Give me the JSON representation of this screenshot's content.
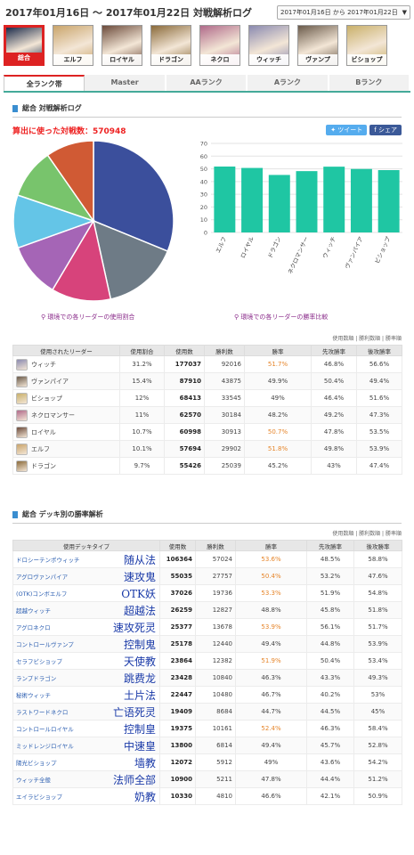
{
  "header": {
    "title": "2017年01月16日 ～ 2017年01月22日 対戦解析ログ",
    "range_select": "2017年01月16日 から 2017年01月22日",
    "range_arrow": "▼"
  },
  "leaders": [
    {
      "label": "総合",
      "active": true,
      "color": "#1a2a4a"
    },
    {
      "label": "エルフ",
      "active": false,
      "color": "#c9a46a"
    },
    {
      "label": "ロイヤル",
      "active": false,
      "color": "#6b4a3a"
    },
    {
      "label": "ドラゴン",
      "active": false,
      "color": "#8a6a3a"
    },
    {
      "label": "ネクロ",
      "active": false,
      "color": "#b06a8a"
    },
    {
      "label": "ウィッチ",
      "active": false,
      "color": "#8a8ab0"
    },
    {
      "label": "ヴァンプ",
      "active": false,
      "color": "#6a5a4a"
    },
    {
      "label": "ビショップ",
      "active": false,
      "color": "#c9b06a"
    }
  ],
  "tabs": [
    "全ランク帯",
    "Master",
    "AAランク",
    "Aランク",
    "Bランク"
  ],
  "section1": {
    "title": "総合 対戦解析ログ",
    "count_text": "算出に使った対戦数：570948",
    "tweet": "ツイート",
    "share": "シェア",
    "pie_caption": "環境での各リーダーの使用割合",
    "bar_caption": "環境での各リーダーの勝率比較",
    "legend_link": "使用数順 | 勝利数順 | 勝率順"
  },
  "chart_data": [
    {
      "type": "pie",
      "categories": [
        "ウィッチ",
        "ヴァンパイア",
        "ビショップ",
        "ネクロマンサー",
        "ロイヤル",
        "エルフ",
        "ドラゴン"
      ],
      "values": [
        31.2,
        15.4,
        12,
        11,
        10.7,
        10.1,
        9.7
      ],
      "colors": [
        "#3b4f9c",
        "#6e7b86",
        "#d7437b",
        "#a565b6",
        "#64c5e7",
        "#78c46c",
        "#d05a34"
      ]
    },
    {
      "type": "bar",
      "categories": [
        "エルフ",
        "ロイヤル",
        "ドラゴン",
        "ネクロマンサー",
        "ウィッチ",
        "ヴァンパイア",
        "ビショップ"
      ],
      "values": [
        51.8,
        50.7,
        45.2,
        48.2,
        51.7,
        49.9,
        49
      ],
      "ylim": [
        0,
        70
      ],
      "yticks": [
        0,
        10,
        20,
        30,
        40,
        50,
        60,
        70
      ],
      "color": "#1fc6a3",
      "grid": true
    }
  ],
  "leader_table": {
    "headers": [
      "使用されたリーダー",
      "使用割合",
      "使用数",
      "勝利数",
      "勝率",
      "先攻勝率",
      "後攻勝率"
    ],
    "rows": [
      {
        "name": "ウィッチ",
        "share": "31.2%",
        "used": "177037",
        "wins": "92016",
        "rate": "51.7%",
        "first": "46.8%",
        "second": "56.6%",
        "hi": true,
        "icon": "#8a8ab0"
      },
      {
        "name": "ヴァンパイア",
        "share": "15.4%",
        "used": "87910",
        "wins": "43875",
        "rate": "49.9%",
        "first": "50.4%",
        "second": "49.4%",
        "hi": false,
        "icon": "#6a5a4a"
      },
      {
        "name": "ビショップ",
        "share": "12%",
        "used": "68413",
        "wins": "33545",
        "rate": "49%",
        "first": "46.4%",
        "second": "51.6%",
        "hi": false,
        "icon": "#c9b06a"
      },
      {
        "name": "ネクロマンサー",
        "share": "11%",
        "used": "62570",
        "wins": "30184",
        "rate": "48.2%",
        "first": "49.2%",
        "second": "47.3%",
        "hi": false,
        "icon": "#b06a8a"
      },
      {
        "name": "ロイヤル",
        "share": "10.7%",
        "used": "60998",
        "wins": "30913",
        "rate": "50.7%",
        "first": "47.8%",
        "second": "53.5%",
        "hi": true,
        "icon": "#6b4a3a"
      },
      {
        "name": "エルフ",
        "share": "10.1%",
        "used": "57694",
        "wins": "29902",
        "rate": "51.8%",
        "first": "49.8%",
        "second": "53.9%",
        "hi": true,
        "icon": "#c9a46a"
      },
      {
        "name": "ドラゴン",
        "share": "9.7%",
        "used": "55426",
        "wins": "25039",
        "rate": "45.2%",
        "first": "43%",
        "second": "47.4%",
        "hi": false,
        "icon": "#8a6a3a"
      }
    ]
  },
  "section2": {
    "title": "総合 デッキ別の勝率解析",
    "legend_link": "使用数順 | 勝利数順 | 勝率順"
  },
  "deck_table": {
    "headers": [
      "使用デッキタイプ",
      "使用数",
      "勝利数",
      "勝率",
      "先攻勝率",
      "後攻勝率"
    ],
    "rows": [
      {
        "name": "ドロシーテンポウィッチ",
        "cn": "随从法",
        "used": "106364",
        "wins": "57024",
        "rate": "53.6%",
        "first": "48.5%",
        "second": "58.8%",
        "hi": true
      },
      {
        "name": "アグロヴァンパイア",
        "cn": "速攻鬼",
        "used": "55035",
        "wins": "27757",
        "rate": "50.4%",
        "first": "53.2%",
        "second": "47.6%",
        "hi": true
      },
      {
        "name": "(OTK)コンボエルフ",
        "cn": "OTK妖",
        "used": "37026",
        "wins": "19736",
        "rate": "53.3%",
        "first": "51.9%",
        "second": "54.8%",
        "hi": true
      },
      {
        "name": "超越ウィッチ",
        "cn": "超越法",
        "used": "26259",
        "wins": "12827",
        "rate": "48.8%",
        "first": "45.8%",
        "second": "51.8%",
        "hi": false
      },
      {
        "name": "アグロネクロ",
        "cn": "速攻死灵",
        "used": "25377",
        "wins": "13678",
        "rate": "53.9%",
        "first": "56.1%",
        "second": "51.7%",
        "hi": true
      },
      {
        "name": "コントロールヴァンプ",
        "cn": "控制鬼",
        "used": "25178",
        "wins": "12440",
        "rate": "49.4%",
        "first": "44.8%",
        "second": "53.9%",
        "hi": false
      },
      {
        "name": "セラフビショップ",
        "cn": "天使教",
        "used": "23864",
        "wins": "12382",
        "rate": "51.9%",
        "first": "50.4%",
        "second": "53.4%",
        "hi": true
      },
      {
        "name": "ランプドラゴン",
        "cn": "跳费龙",
        "used": "23428",
        "wins": "10840",
        "rate": "46.3%",
        "first": "43.3%",
        "second": "49.3%",
        "hi": false
      },
      {
        "name": "秘術ウィッチ",
        "cn": "土片法",
        "used": "22447",
        "wins": "10480",
        "rate": "46.7%",
        "first": "40.2%",
        "second": "53%",
        "hi": false
      },
      {
        "name": "ラストワードネクロ",
        "cn": "亡语死灵",
        "used": "19409",
        "wins": "8684",
        "rate": "44.7%",
        "first": "44.5%",
        "second": "45%",
        "hi": false
      },
      {
        "name": "コントロールロイヤル",
        "cn": "控制皇",
        "used": "19375",
        "wins": "10161",
        "rate": "52.4%",
        "first": "46.3%",
        "second": "58.4%",
        "hi": true
      },
      {
        "name": "ミッドレンジロイヤル",
        "cn": "中速皇",
        "used": "13800",
        "wins": "6814",
        "rate": "49.4%",
        "first": "45.7%",
        "second": "52.8%",
        "hi": false
      },
      {
        "name": "陽光ビショップ",
        "cn": "墙教",
        "used": "12072",
        "wins": "5912",
        "rate": "49%",
        "first": "43.6%",
        "second": "54.2%",
        "hi": false
      },
      {
        "name": "ウィッチ全般",
        "cn": "法师全部",
        "used": "10900",
        "wins": "5211",
        "rate": "47.8%",
        "first": "44.4%",
        "second": "51.2%",
        "hi": false
      },
      {
        "name": "エイラビショップ",
        "cn": "奶教",
        "used": "10330",
        "wins": "4810",
        "rate": "46.6%",
        "first": "42.1%",
        "second": "50.9%",
        "hi": false
      }
    ]
  }
}
